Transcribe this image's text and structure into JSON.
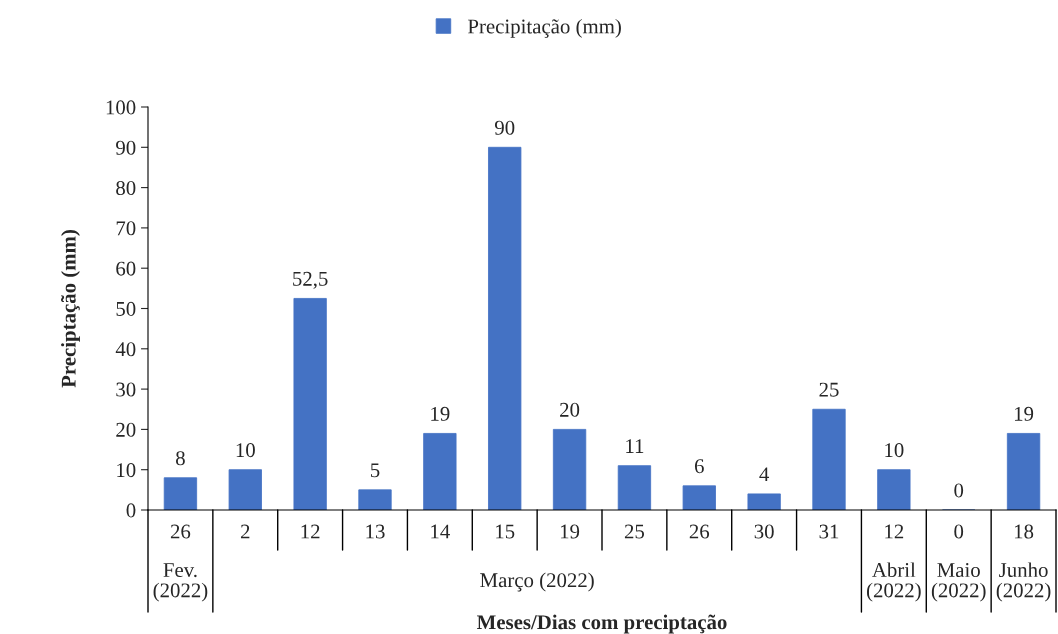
{
  "chart_data": {
    "type": "bar",
    "categories": [
      "26",
      "2",
      "12",
      "13",
      "14",
      "15",
      "19",
      "25",
      "26",
      "30",
      "31",
      "12",
      "0",
      "18"
    ],
    "series": [
      {
        "name": "Precipitação (mm)",
        "color": "#4472c4",
        "values": [
          8,
          10,
          52.5,
          5,
          19,
          90,
          20,
          11,
          6,
          4,
          25,
          10,
          0,
          19
        ],
        "value_labels": [
          "8",
          "10",
          "52,5",
          "5",
          "19",
          "90",
          "20",
          "11",
          "6",
          "4",
          "25",
          "10",
          "0",
          "19"
        ]
      }
    ],
    "xlabel": "Meses/Dias com preciptação",
    "ylabel": "Preciptação (mm)",
    "ylim": [
      0,
      100
    ],
    "yticks": [
      0,
      10,
      20,
      30,
      40,
      50,
      60,
      70,
      80,
      90,
      100
    ],
    "annotations": [
      "Fev.\n(2022)",
      "Março (2022)",
      "Abril\n(2022)",
      "Maio\n(2022)",
      "Junho\n(2022)"
    ],
    "grid": false,
    "legend": "top"
  }
}
